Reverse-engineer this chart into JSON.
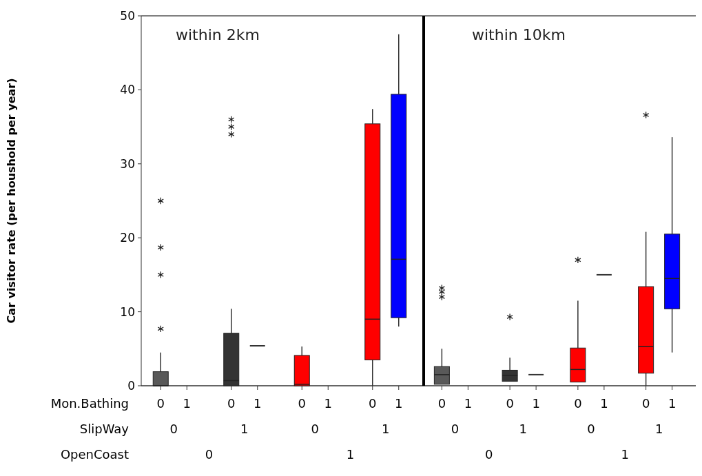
{
  "chart_data": [
    {
      "type": "box",
      "title": "within 2km",
      "ylabel": "Car visitor rate (per houshold per year)",
      "categories": [
        "0",
        "1",
        "0",
        "1",
        "0",
        "1",
        "0",
        "1"
      ],
      "ylim": [
        0,
        50
      ],
      "yticks": [
        0,
        10,
        20,
        30,
        40,
        50
      ],
      "colors": [
        "#595959",
        null,
        "#333333",
        "#333333",
        "#ff0000",
        null,
        "#ff0000",
        "#0000ff"
      ],
      "boxes": [
        {
          "low": 0,
          "q1": 0,
          "median": 0,
          "q3": 1.9,
          "high": 4.5,
          "outliers": [
            7.7,
            15,
            18.7,
            25
          ]
        },
        null,
        {
          "low": 0,
          "q1": 0,
          "median": 0.7,
          "q3": 7.1,
          "high": 10.4,
          "outliers": [
            34,
            35,
            36
          ]
        },
        {
          "low": 5.4,
          "q1": 5.4,
          "median": 5.4,
          "q3": 5.4,
          "high": 5.4
        },
        {
          "low": 0,
          "q1": 0,
          "median": 0.2,
          "q3": 4.1,
          "high": 5.3
        },
        null,
        {
          "low": 0,
          "q1": 3.5,
          "median": 9,
          "q3": 35.4,
          "high": 37.4
        },
        {
          "low": 8,
          "q1": 9.2,
          "median": 17.1,
          "q3": 39.4,
          "high": 47.5
        }
      ],
      "annotations": [
        "0",
        "1",
        "0",
        "1",
        "0",
        "1",
        "Mon.Bathing",
        "SlipWay",
        "OpenCoast"
      ]
    },
    {
      "type": "box",
      "title": "within 10km",
      "categories": [
        "0",
        "1",
        "0",
        "1",
        "0",
        "1",
        "0",
        "1"
      ],
      "ylim": [
        0,
        50
      ],
      "yticks": [
        0,
        10,
        20,
        30,
        40,
        50
      ],
      "tick_labels": "x",
      "colors": [
        "#595959",
        null,
        "#333333",
        "#333333",
        "#ff0000",
        "#333333",
        "#ff0000",
        "#0000ff"
      ],
      "boxes": [
        {
          "low": 0.2,
          "q1": 0.2,
          "median": 1.5,
          "q3": 2.6,
          "high": 5,
          "outliers": [
            12,
            12.7,
            13.2
          ]
        },
        null,
        {
          "low": 0.6,
          "q1": 0.6,
          "median": 1.4,
          "q3": 2.1,
          "high": 3.8,
          "outliers": [
            9.3
          ]
        },
        {
          "low": 1.5,
          "q1": 1.5,
          "median": 1.5,
          "q3": 1.5,
          "high": 1.5
        },
        {
          "low": 0.5,
          "q1": 0.5,
          "median": 2.2,
          "q3": 5.1,
          "high": 11.5,
          "outliers": [
            17
          ]
        },
        {
          "low": 15,
          "q1": 15,
          "median": 15,
          "q3": 15,
          "high": 15
        },
        {
          "low": 0,
          "q1": 1.7,
          "median": 5.3,
          "q3": 13.4,
          "high": 20.8,
          "outliers": [
            36.6
          ]
        },
        {
          "low": 4.5,
          "q1": 10.4,
          "median": 14.5,
          "q3": 20.5,
          "high": 33.6
        }
      ],
      "annotations": [
        "0",
        "1",
        "0",
        "1",
        "0",
        "1"
      ]
    }
  ]
}
